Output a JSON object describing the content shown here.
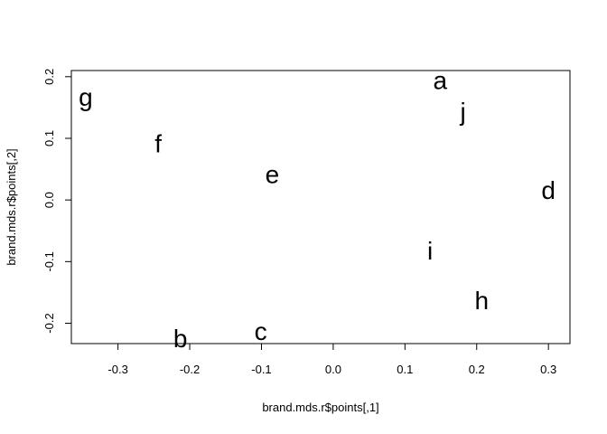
{
  "chart_data": {
    "type": "scatter",
    "title": "",
    "xlabel": "brand.mds.r$points[,1]",
    "ylabel": "brand.mds.r$points[,2]",
    "xlim": [
      -0.365,
      0.33
    ],
    "ylim": [
      -0.233,
      0.21
    ],
    "xticks": [
      -0.3,
      -0.2,
      -0.1,
      0.0,
      0.1,
      0.2,
      0.3
    ],
    "xtick_labels": [
      "-0.3",
      "-0.2",
      "-0.1",
      "0.0",
      "0.1",
      "0.2",
      "0.3"
    ],
    "yticks": [
      -0.2,
      -0.1,
      0.0,
      0.1,
      0.2
    ],
    "ytick_labels": [
      "-0.2",
      "-0.1",
      "0.0",
      "0.1",
      "0.2"
    ],
    "grid": false,
    "points": [
      {
        "label": "a",
        "x": 0.149,
        "y": 0.194
      },
      {
        "label": "b",
        "x": -0.213,
        "y": -0.225
      },
      {
        "label": "c",
        "x": -0.101,
        "y": -0.213
      },
      {
        "label": "d",
        "x": 0.3,
        "y": 0.016
      },
      {
        "label": "e",
        "x": -0.085,
        "y": 0.041
      },
      {
        "label": "f",
        "x": -0.244,
        "y": 0.091
      },
      {
        "label": "g",
        "x": -0.345,
        "y": 0.167
      },
      {
        "label": "h",
        "x": 0.207,
        "y": -0.163
      },
      {
        "label": "i",
        "x": 0.135,
        "y": -0.083
      },
      {
        "label": "j",
        "x": 0.181,
        "y": 0.143
      }
    ]
  }
}
